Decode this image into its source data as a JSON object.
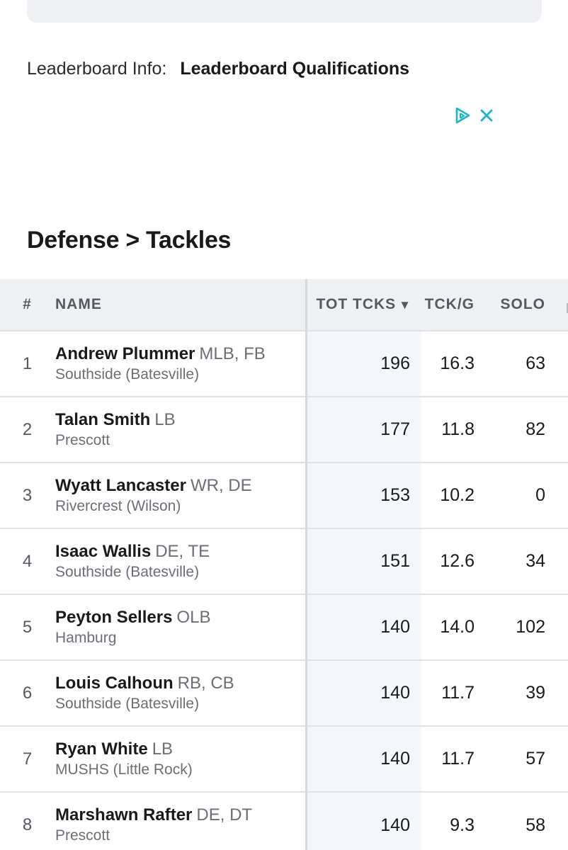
{
  "leaderboard_info": {
    "label": "Leaderboard Info:",
    "link": "Leaderboard Qualifications"
  },
  "ad": {
    "play_icon": "ad-choices-icon",
    "close_icon": "close-icon",
    "accent": "#1ab3d0"
  },
  "section": {
    "title": "Defense > Tackles"
  },
  "table": {
    "headers": {
      "rank": "#",
      "name": "NAME",
      "tot": "TOT TCKS",
      "sort_arrow": "▼",
      "tckg": "TCK/G",
      "solo": "SOLO"
    },
    "rows": [
      {
        "rank": "1",
        "name": "Andrew Plummer",
        "pos": "MLB, FB",
        "team": "Southside (Batesville)",
        "tot": "196",
        "tckg": "16.3",
        "solo": "63"
      },
      {
        "rank": "2",
        "name": "Talan Smith",
        "pos": "LB",
        "team": "Prescott",
        "tot": "177",
        "tckg": "11.8",
        "solo": "82"
      },
      {
        "rank": "3",
        "name": "Wyatt Lancaster",
        "pos": "WR, DE",
        "team": "Rivercrest (Wilson)",
        "tot": "153",
        "tckg": "10.2",
        "solo": "0"
      },
      {
        "rank": "4",
        "name": "Isaac Wallis",
        "pos": "DE, TE",
        "team": "Southside (Batesville)",
        "tot": "151",
        "tckg": "12.6",
        "solo": "34"
      },
      {
        "rank": "5",
        "name": "Peyton Sellers",
        "pos": "OLB",
        "team": "Hamburg",
        "tot": "140",
        "tckg": "14.0",
        "solo": "102"
      },
      {
        "rank": "6",
        "name": "Louis Calhoun",
        "pos": "RB, CB",
        "team": "Southside (Batesville)",
        "tot": "140",
        "tckg": "11.7",
        "solo": "39"
      },
      {
        "rank": "7",
        "name": "Ryan White",
        "pos": "LB",
        "team": "MUSHS (Little Rock)",
        "tot": "140",
        "tckg": "11.7",
        "solo": "57"
      },
      {
        "rank": "8",
        "name": "Marshawn Rafter",
        "pos": "DE, DT",
        "team": "Prescott",
        "tot": "140",
        "tckg": "9.3",
        "solo": "58"
      }
    ]
  }
}
